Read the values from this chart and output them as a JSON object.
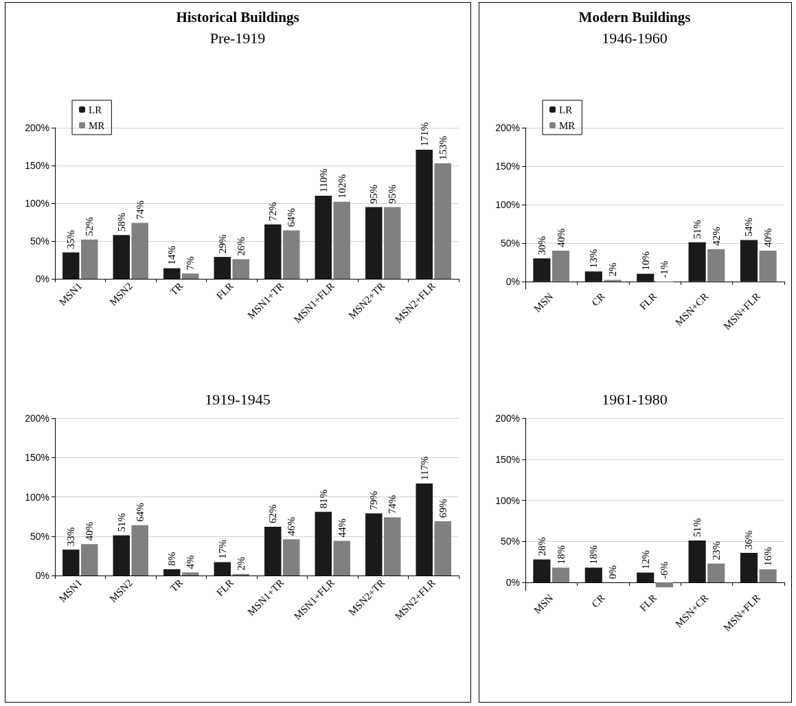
{
  "chart_data": [
    {
      "type": "bar",
      "title": "Historical Buildings",
      "subtitle": "Pre-1919",
      "categories": [
        "MSN1",
        "MSN2",
        "TR",
        "FLR",
        "MSN1+TR",
        "MSN1+FLR",
        "MSN2+TR",
        "MSN2+FLR"
      ],
      "series": [
        {
          "name": "LR",
          "color": "#1a1a1a",
          "values": [
            35,
            58,
            14,
            29,
            72,
            110,
            95,
            171
          ],
          "value_labels": [
            "35%",
            "58%",
            "14%",
            "29%",
            "72%",
            "110%",
            "95%",
            "171%"
          ]
        },
        {
          "name": "MR",
          "color": "#808080",
          "values": [
            52,
            74,
            7,
            26,
            64,
            102,
            95,
            153
          ],
          "value_labels": [
            "52%",
            "74%",
            "7%",
            "26%",
            "64%",
            "102%",
            "95%",
            "153%"
          ]
        }
      ],
      "ylim": [
        0,
        200
      ],
      "yticks": [
        {
          "value": 0,
          "label": "0%"
        },
        {
          "value": 50,
          "label": "50%"
        },
        {
          "value": 100,
          "label": "100%"
        },
        {
          "value": 150,
          "label": "150%"
        },
        {
          "value": 200,
          "label": "200%"
        }
      ],
      "grid": "y",
      "legend": "top left"
    },
    {
      "type": "bar",
      "title": "Modern Buildings",
      "subtitle": "1946-1960",
      "categories": [
        "MSN",
        "CR",
        "FLR",
        "MSN+CR",
        "MSN+FLR"
      ],
      "series": [
        {
          "name": "LR",
          "color": "#1a1a1a",
          "values": [
            30,
            13,
            10,
            51,
            54
          ],
          "value_labels": [
            "30%",
            "13%",
            "10%",
            "51%",
            "54%"
          ]
        },
        {
          "name": "MR",
          "color": "#808080",
          "values": [
            40,
            2,
            -1,
            42,
            40
          ],
          "value_labels": [
            "40%",
            "2%",
            "-1%",
            "42%",
            "40%"
          ]
        }
      ],
      "ylim": [
        -10,
        200
      ],
      "yticks": [
        {
          "value": 0,
          "label": "0%"
        },
        {
          "value": 50,
          "label": "50%"
        },
        {
          "value": 100,
          "label": "100%"
        },
        {
          "value": 150,
          "label": "150%"
        },
        {
          "value": 200,
          "label": "200%"
        }
      ],
      "grid": "y",
      "legend": "top left"
    },
    {
      "type": "bar",
      "title": "1919-1945",
      "categories": [
        "MSN1",
        "MSN2",
        "TR",
        "FLR",
        "MSN1+TR",
        "MSN1+FLR",
        "MSN2+TR",
        "MSN2+FLR"
      ],
      "series": [
        {
          "color": "#1a1a1a",
          "values": [
            33,
            51,
            8,
            17,
            62,
            81,
            79,
            117
          ],
          "value_labels": [
            "33%",
            "51%",
            "8%",
            "17%",
            "62%",
            "81%",
            "79%",
            "117%"
          ]
        },
        {
          "color": "#808080",
          "values": [
            40,
            64,
            4,
            2,
            46,
            44,
            74,
            69
          ],
          "value_labels": [
            "40%",
            "64%",
            "4%",
            "2%",
            "46%",
            "44%",
            "74%",
            "69%"
          ]
        }
      ],
      "ylim": [
        0,
        200
      ],
      "yticks": [
        {
          "value": 0,
          "label": "0%"
        },
        {
          "value": 50,
          "label": "50%"
        },
        {
          "value": 100,
          "label": "100%"
        },
        {
          "value": 150,
          "label": "150%"
        },
        {
          "value": 200,
          "label": "200%"
        }
      ],
      "grid": "y"
    },
    {
      "type": "bar",
      "title": "1961-1980",
      "categories": [
        "MSN",
        "CR",
        "FLR",
        "MSN+CR",
        "MSN+FLR"
      ],
      "series": [
        {
          "color": "#1a1a1a",
          "values": [
            28,
            18,
            12,
            51,
            36
          ],
          "value_labels": [
            "28%",
            "18%",
            "12%",
            "51%",
            "36%"
          ]
        },
        {
          "color": "#808080",
          "values": [
            18,
            0,
            -6,
            23,
            16
          ],
          "value_labels": [
            "18%",
            "0%",
            "-6%",
            "23%",
            "16%"
          ]
        }
      ],
      "ylim": [
        -10,
        200
      ],
      "yticks": [
        {
          "value": 0,
          "label": "0%"
        },
        {
          "value": 50,
          "label": "50%"
        },
        {
          "value": 100,
          "label": "100%"
        },
        {
          "value": 150,
          "label": "150%"
        },
        {
          "value": 200,
          "label": "200%"
        }
      ],
      "grid": "y"
    }
  ]
}
